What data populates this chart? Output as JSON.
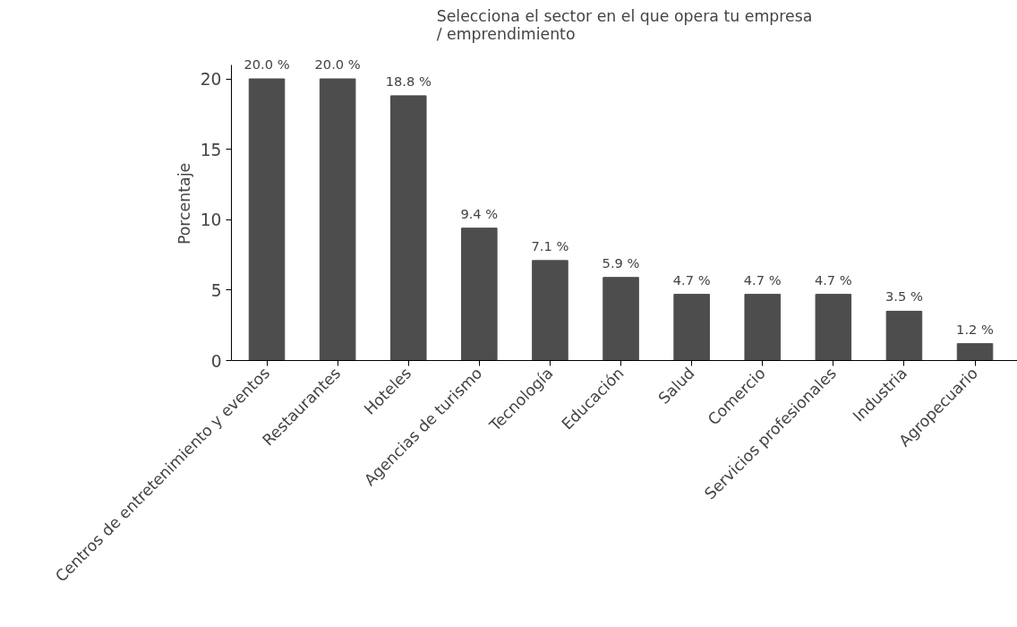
{
  "chart_data": {
    "type": "bar",
    "title": "Selecciona el sector en el que opera tu empresa / emprendimiento",
    "ylabel": "Porcentaje",
    "categories": [
      "Centros de entretenimiento y eventos",
      "Restaurantes",
      "Hoteles",
      "Agencias de turismo",
      "Tecnología",
      "Educación",
      "Salud",
      "Comercio",
      "Servicios profesionales",
      "Industria",
      "Agropecuario"
    ],
    "values": [
      20.0,
      20.0,
      18.8,
      9.4,
      7.1,
      5.9,
      4.7,
      4.7,
      4.7,
      3.5,
      1.2
    ],
    "value_labels": [
      "20.0 %",
      "20.0 %",
      "18.8 %",
      "9.4 %",
      "7.1 %",
      "5.9 %",
      "4.7 %",
      "4.7 %",
      "4.7 %",
      "3.5 %",
      "1.2 %"
    ],
    "color": "#4d4d4d",
    "ylim": [
      0,
      21
    ],
    "yticks": [
      0,
      5,
      10,
      15,
      20
    ],
    "grid": false
  }
}
